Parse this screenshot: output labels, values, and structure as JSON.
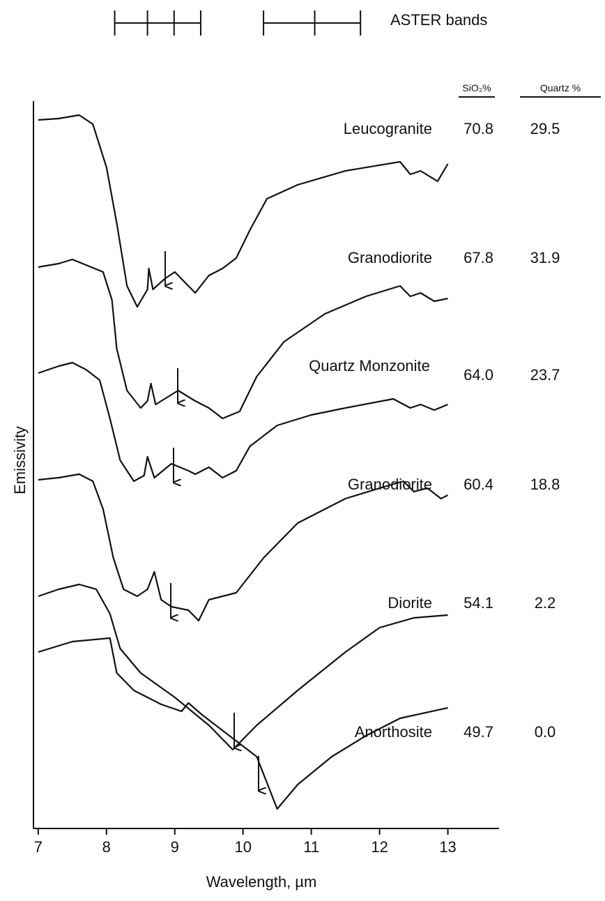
{
  "chart_data": {
    "type": "line",
    "bands_label": "ASTER bands",
    "aster_band_edges": [
      [
        8.12,
        8.6,
        8.99,
        9.38
      ],
      [
        10.3,
        11.05,
        11.72
      ]
    ],
    "xlabel": "Wavelength, µm",
    "ylabel": "Emissivity",
    "xlim": [
      6.93,
      13.75
    ],
    "xticks": [
      7,
      8,
      9,
      10,
      11,
      12,
      13
    ],
    "ylim": [
      0,
      104.3
    ],
    "col_headers": [
      "SiO₂%",
      "Quartz %"
    ],
    "series": [
      {
        "name": "Leucogranite",
        "color": "#111111",
        "sio2": "70.8",
        "quartz": "29.5",
        "x": [
          7,
          7.3,
          7.6,
          7.8,
          8.0,
          8.15,
          8.3,
          8.45,
          8.6,
          8.62,
          8.68,
          8.85,
          9.0,
          9.15,
          9.3,
          9.5,
          9.7,
          9.9,
          10.1,
          10.35,
          10.8,
          11.5,
          12.3,
          12.45,
          12.6,
          12.85,
          13
        ],
        "values": [
          101.6,
          101.8,
          102.3,
          101,
          94.8,
          86.8,
          77.8,
          74.8,
          77.3,
          80.3,
          77.3,
          78.8,
          79.8,
          78.3,
          76.8,
          79.3,
          80.3,
          81.8,
          85.8,
          90.3,
          92.3,
          94.3,
          95.6,
          93.8,
          94.3,
          92.8,
          95.3
        ]
      },
      {
        "name": "Granodiorite",
        "color": "#111111",
        "sio2": "67.8",
        "quartz": "31.9",
        "x": [
          7,
          7.3,
          7.5,
          7.7,
          7.95,
          8.08,
          8.15,
          8.3,
          8.5,
          8.6,
          8.65,
          8.72,
          9.05,
          9.3,
          9.5,
          9.7,
          9.95,
          10.2,
          10.6,
          11.2,
          11.8,
          12.3,
          12.45,
          12.6,
          12.8,
          13
        ],
        "values": [
          80.5,
          81,
          81.6,
          80.8,
          79.8,
          75.8,
          68.8,
          62.8,
          60.3,
          61.3,
          63.8,
          60.8,
          62.8,
          61.3,
          60.3,
          58.8,
          59.8,
          64.8,
          69.8,
          73.8,
          76.3,
          77.8,
          76.3,
          76.8,
          75.6,
          76.0
        ]
      },
      {
        "name": "Quartz Monzonite",
        "color": "#111111",
        "sio2": "64.0",
        "quartz": "23.7",
        "x": [
          7,
          7.3,
          7.5,
          7.7,
          7.9,
          8.05,
          8.2,
          8.4,
          8.55,
          8.6,
          8.7,
          8.95,
          9.2,
          9.3,
          9.5,
          9.7,
          9.9,
          10.1,
          10.5,
          11.0,
          11.5,
          12.2,
          12.45,
          12.6,
          12.8,
          13
        ],
        "values": [
          65.3,
          66.3,
          66.8,
          65.8,
          64.3,
          58.8,
          52.8,
          49.8,
          50.6,
          53.3,
          50.3,
          52.3,
          51.3,
          50.8,
          51.8,
          50.3,
          51.3,
          54.8,
          57.8,
          59.3,
          60.3,
          61.6,
          60.3,
          60.8,
          60.0,
          60.8
        ]
      },
      {
        "name": "Granodiorite",
        "color": "#111111",
        "sio2": "60.4",
        "quartz": "18.8",
        "x": [
          7,
          7.3,
          7.6,
          7.8,
          7.95,
          8.1,
          8.25,
          8.45,
          8.6,
          8.7,
          8.8,
          8.95,
          9.2,
          9.35,
          9.5,
          9.9,
          10.3,
          10.8,
          11.5,
          12.0,
          12.35,
          12.5,
          12.7,
          12.9,
          13
        ],
        "values": [
          50.0,
          50.3,
          50.8,
          49.8,
          45.8,
          38.8,
          34.3,
          33.3,
          34.3,
          36.8,
          32.8,
          31.8,
          31.3,
          29.8,
          32.8,
          33.8,
          38.8,
          43.8,
          47.3,
          48.8,
          49.8,
          48.3,
          48.8,
          47.3,
          47.8
        ]
      },
      {
        "name": "Diorite",
        "color": "#111111",
        "sio2": "54.1",
        "quartz": "2.2",
        "x": [
          7,
          7.3,
          7.6,
          7.85,
          8.05,
          8.2,
          8.5,
          9.0,
          9.5,
          9.85,
          10.2,
          10.8,
          11.5,
          12.0,
          12.5,
          13
        ],
        "values": [
          33.3,
          34.3,
          35.0,
          34.3,
          30.8,
          25.8,
          22.3,
          18.8,
          14.8,
          11.3,
          14.8,
          19.8,
          25.3,
          28.8,
          30.2,
          30.6
        ]
      },
      {
        "name": "Anorthosite",
        "color": "#111111",
        "sio2": "49.7",
        "quartz": "0.0",
        "x": [
          7,
          7.5,
          8.05,
          8.15,
          8.4,
          8.8,
          9.1,
          9.2,
          9.4,
          9.8,
          10.2,
          10.5,
          10.8,
          11.3,
          11.8,
          12.3,
          13
        ],
        "values": [
          25.3,
          26.8,
          27.3,
          22.3,
          19.8,
          17.8,
          16.8,
          18.0,
          16.3,
          13.3,
          10.3,
          2.8,
          6.3,
          10.3,
          13.3,
          15.8,
          17.3
        ]
      }
    ]
  }
}
